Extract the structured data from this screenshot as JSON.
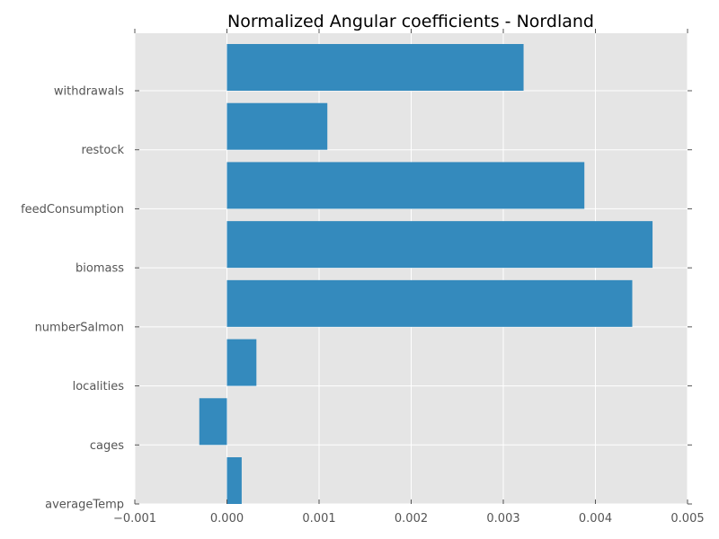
{
  "chart_data": {
    "type": "bar",
    "orientation": "horizontal",
    "title": "Normalized Angular coefficients - Nordland",
    "xlabel": "",
    "ylabel": "",
    "categories": [
      "withdrawals",
      "restock",
      "feedConsumption",
      "biomass",
      "numberSalmon",
      "localities",
      "cages",
      "averageTemp"
    ],
    "values": [
      0.00322,
      0.00109,
      0.00388,
      0.00462,
      0.0044,
      0.00032,
      -0.0003,
      0.00016
    ],
    "xlim": [
      -0.001,
      0.005
    ],
    "xticks": [
      -0.001,
      0.0,
      0.001,
      0.002,
      0.003,
      0.004,
      0.005
    ],
    "xtick_labels": [
      "−0.001",
      "0.000",
      "0.001",
      "0.002",
      "0.003",
      "0.004",
      "0.005"
    ],
    "grid": true,
    "legend": "none",
    "colors": {
      "bar": "#348abd",
      "plot_background": "#e5e5e5",
      "grid": "#ffffff",
      "tick_text": "#555555"
    }
  }
}
